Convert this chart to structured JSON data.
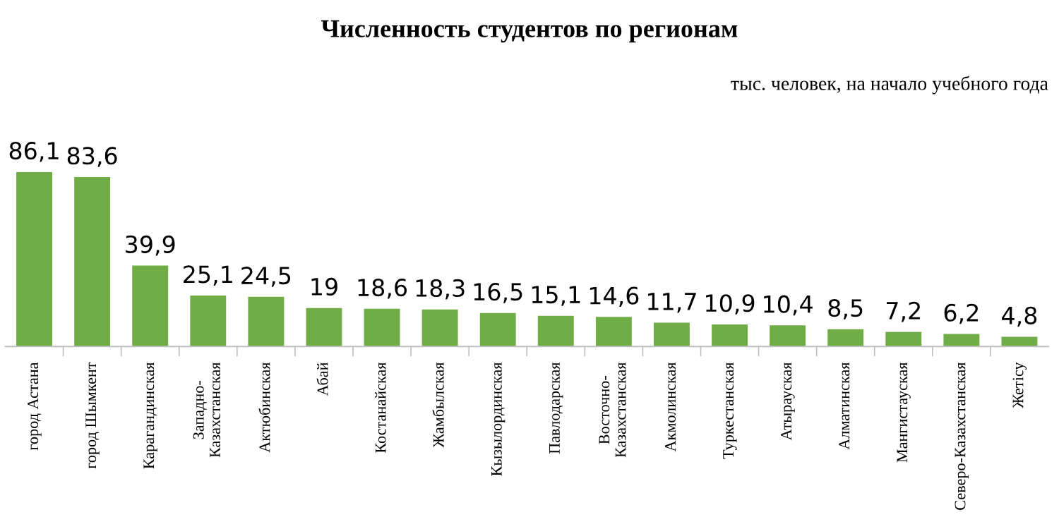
{
  "chart_data": {
    "type": "bar",
    "title": "Численность студентов по регионам",
    "subtitle": "тыс. человек, на начало учебного года",
    "categories": [
      "город Астана",
      "город Шымкент",
      "Карагандинская",
      "Западно-\nКазахстанская",
      "Актюбинская",
      "Абай",
      "Костанайская",
      "Жамбылская",
      "Кызылординская",
      "Павлодарская",
      "Восточно-\nКазахстанская",
      "Акмолинская",
      "Туркестанская",
      "Атырауская",
      "Алматинская",
      "Мангистауская",
      "Северо-Казахстанская",
      "Жетісу"
    ],
    "values": [
      86.1,
      83.6,
      39.9,
      25.1,
      24.5,
      19,
      18.6,
      18.3,
      16.5,
      15.1,
      14.6,
      11.7,
      10.9,
      10.4,
      8.5,
      7.2,
      6.2,
      4.8
    ],
    "value_labels": [
      "86,1",
      "83,6",
      "39,9",
      "25,1",
      "24,5",
      "19",
      "18,6",
      "18,3",
      "16,5",
      "15,1",
      "14,6",
      "11,7",
      "10,9",
      "10,4",
      "8,5",
      "7,2",
      "6,2",
      "4,8"
    ],
    "color": "#70ad47"
  }
}
